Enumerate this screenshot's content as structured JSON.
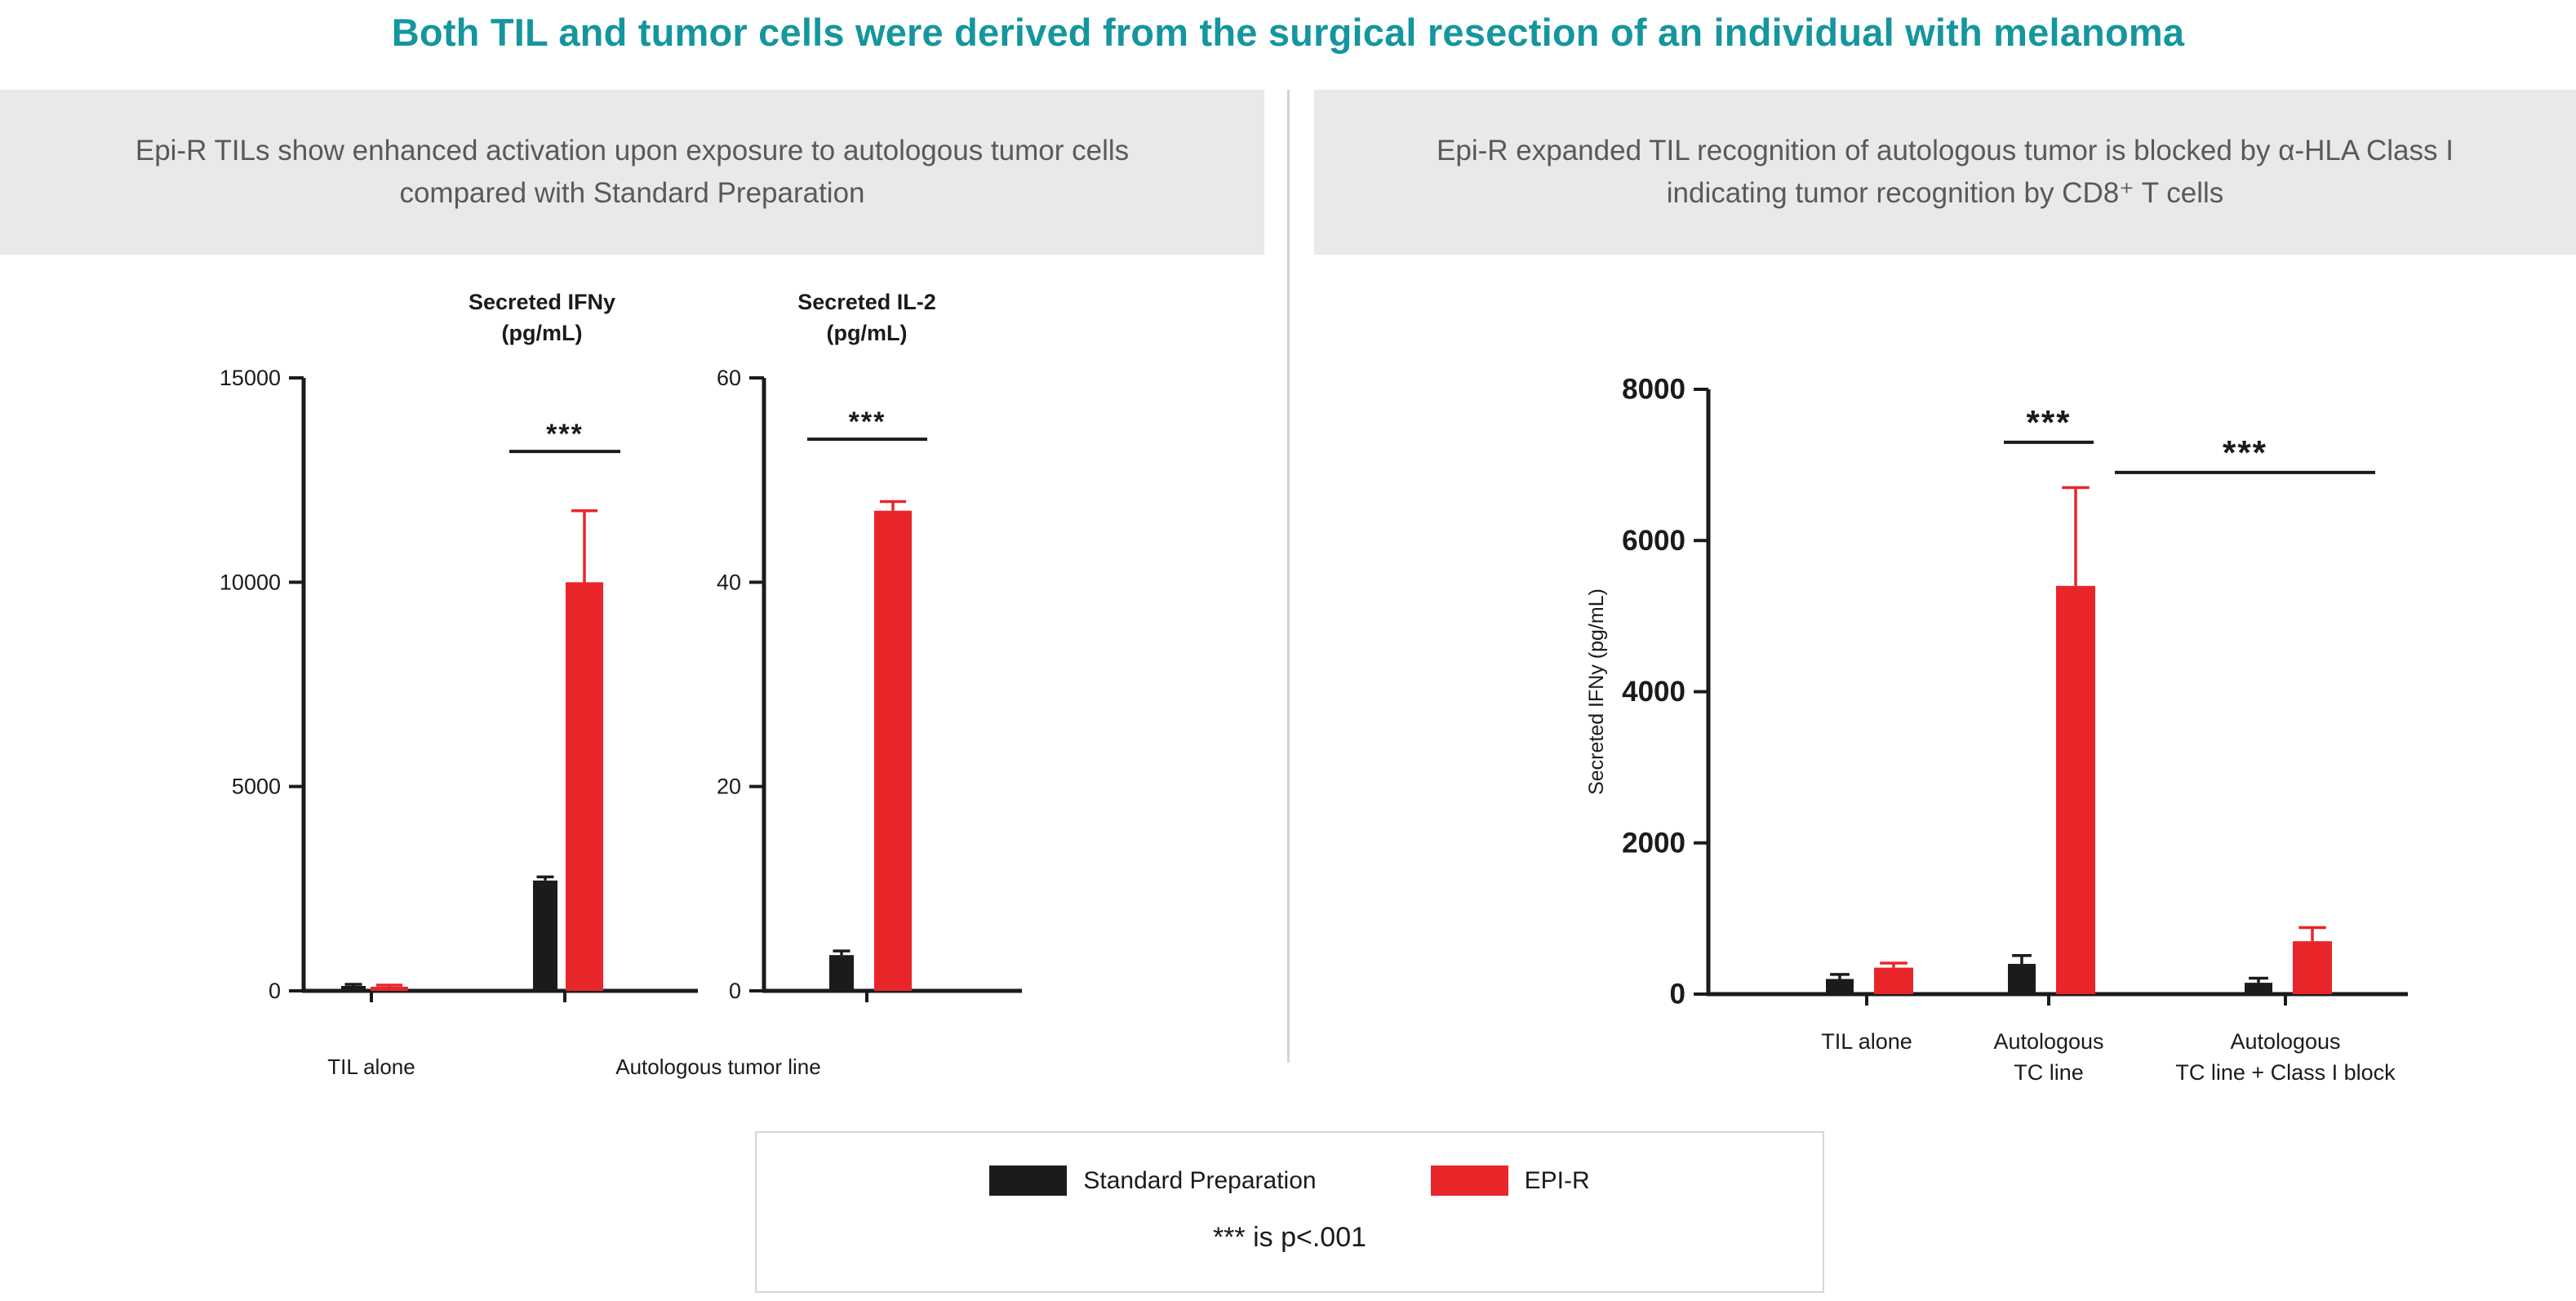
{
  "page": {
    "title": "Both TIL and tumor cells were derived from the surgical resection of an individual with melanoma"
  },
  "panels": {
    "left": {
      "header": "Epi-R TILs show enhanced activation upon exposure to autologous tumor cells compared with Standard Preparation"
    },
    "right": {
      "header": "Epi-R expanded TIL recognition of autologous tumor is blocked by α-HLA Class I indicating tumor recognition by CD8⁺ T cells"
    }
  },
  "colors": {
    "title": "#15969e",
    "header_bg": "#e9e9e9",
    "header_text": "#58595b",
    "black_bar": "#1b1b1b",
    "red_bar": "#e8262a",
    "divider": "#d4d4d4"
  },
  "legend": {
    "items": [
      {
        "label": "Standard Preparation",
        "color": "#1b1b1b"
      },
      {
        "label": "EPI-R",
        "color": "#e8262a"
      }
    ],
    "note": "*** is p<.001",
    "position": "bottom-center"
  },
  "chart_data": [
    {
      "name": "secreted-ifny-left-chart",
      "type": "bar",
      "title": "Secreted IFNy (pg/mL)",
      "title_lines": [
        "Secreted IFNy",
        "(pg/mL)"
      ],
      "xlabel": "",
      "ylabel": "",
      "ylim": [
        0,
        15000
      ],
      "yticks": [
        0,
        5000,
        10000,
        15000
      ],
      "grid": false,
      "categories": [
        "TIL alone",
        "Autologous tumor line"
      ],
      "series": [
        {
          "name": "Standard Preparation",
          "color": "#1b1b1b",
          "values": [
            120,
            2700
          ],
          "errors": [
            40,
            90
          ]
        },
        {
          "name": "EPI-R",
          "color": "#e8262a",
          "values": [
            100,
            10000
          ],
          "errors": [
            40,
            1750
          ]
        }
      ],
      "significance": [
        {
          "text": "***",
          "y": 13200,
          "from": {
            "group": 1,
            "series": 0
          },
          "to": {
            "group": 1,
            "series": 1
          }
        }
      ]
    },
    {
      "name": "secreted-il2-left-chart",
      "type": "bar",
      "title": "Secreted IL-2 (pg/mL)",
      "title_lines": [
        "Secreted IL-2",
        "(pg/mL)"
      ],
      "xlabel": "",
      "ylabel": "",
      "ylim": [
        0,
        60
      ],
      "yticks": [
        0,
        20,
        40,
        60
      ],
      "grid": false,
      "categories": [
        "Autologous tumor line"
      ],
      "series": [
        {
          "name": "Standard Preparation",
          "color": "#1b1b1b",
          "values": [
            3.5
          ],
          "errors": [
            0.4
          ]
        },
        {
          "name": "EPI-R",
          "color": "#e8262a",
          "values": [
            47
          ],
          "errors": [
            0.9
          ]
        }
      ],
      "significance": [
        {
          "text": "***",
          "y": 54,
          "from": {
            "group": 0,
            "series": 0
          },
          "to": {
            "group": 0,
            "series": 1
          }
        }
      ]
    },
    {
      "name": "secreted-ifny-right-chart",
      "type": "bar",
      "title": "",
      "xlabel": "",
      "ylabel": "Secreted IFNy (pg/mL)",
      "ylim": [
        0,
        8000
      ],
      "yticks": [
        0,
        2000,
        4000,
        6000,
        8000
      ],
      "grid": false,
      "categories": [
        "TIL alone",
        "Autologous\nTC line",
        "Autologous\nTC line + Class I block"
      ],
      "series": [
        {
          "name": "Standard Preparation",
          "color": "#1b1b1b",
          "values": [
            200,
            400,
            150
          ],
          "errors": [
            60,
            110,
            60
          ]
        },
        {
          "name": "EPI-R",
          "color": "#e8262a",
          "values": [
            350,
            5400,
            700
          ],
          "errors": [
            60,
            1300,
            180
          ]
        }
      ],
      "significance": [
        {
          "text": "***",
          "y": 7300,
          "from": {
            "group": 1,
            "series": 0
          },
          "to": {
            "group": 1,
            "series": 1
          }
        },
        {
          "text": "***",
          "y": 6900,
          "from": {
            "group": 1,
            "series": 1
          },
          "to": {
            "group": 2,
            "series": 1
          }
        }
      ]
    }
  ]
}
